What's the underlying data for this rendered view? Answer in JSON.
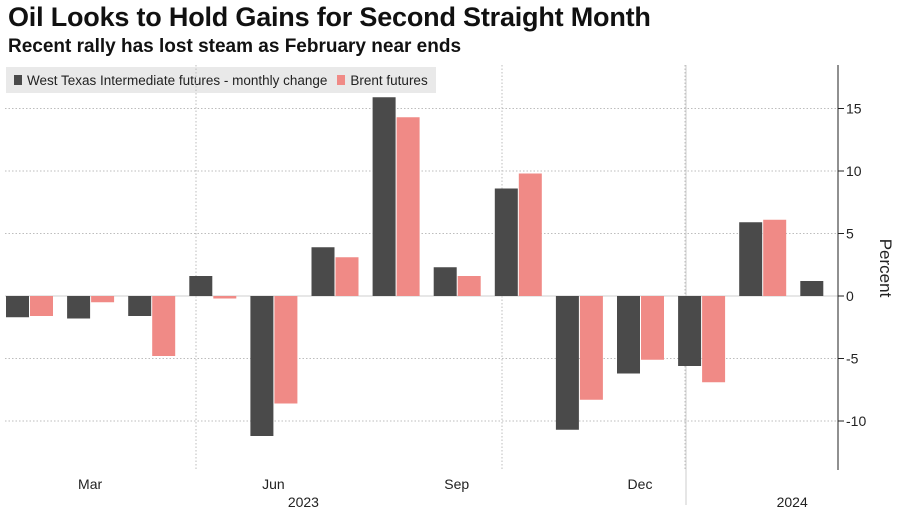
{
  "header": {
    "title": "Oil Looks to Hold Gains for Second Straight Month",
    "subtitle": "Recent rally has lost steam as February near ends"
  },
  "colors": {
    "wti": "#4a4a4a",
    "brent": "#f08a86",
    "grid": "#bdbdbd",
    "axis": "#222222"
  },
  "chart_data": {
    "type": "bar",
    "title": "Oil Looks to Hold Gains for Second Straight Month",
    "subtitle": "Recent rally has lost steam as February near ends",
    "ylabel": "Percent",
    "xlabel": "",
    "ylim": [
      -14,
      18
    ],
    "yticks": [
      -10,
      -5,
      0,
      5,
      10,
      15
    ],
    "ytick_labels": [
      "-10",
      "-5",
      "0",
      "5",
      "10",
      "15"
    ],
    "categories": [
      "2023-02",
      "2023-03",
      "2023-04",
      "2023-05",
      "2023-06",
      "2023-07",
      "2023-08",
      "2023-09",
      "2023-10",
      "2023-11",
      "2023-12",
      "2024-01",
      "2024-02"
    ],
    "series": [
      {
        "name": "West Texas Intermediate futures - monthly change",
        "values": [
          -1.7,
          -1.8,
          -1.6,
          1.6,
          -11.2,
          3.9,
          15.9,
          2.3,
          8.6,
          -10.7,
          -6.2,
          -5.6,
          5.9
        ]
      },
      {
        "name": "Brent futures",
        "values": [
          -1.6,
          -0.5,
          -4.8,
          -0.2,
          -8.6,
          3.1,
          14.3,
          1.6,
          9.8,
          -8.3,
          -5.1,
          -6.9,
          6.1
        ]
      }
    ],
    "x_tick_labels": [
      {
        "category": "2023-03",
        "label": "Mar"
      },
      {
        "category": "2023-06",
        "label": "Jun"
      },
      {
        "category": "2023-09",
        "label": "Sep"
      },
      {
        "category": "2023-12",
        "label": "Dec"
      }
    ],
    "year_labels": [
      {
        "category": "2023-06",
        "label": "2023"
      },
      {
        "category": "2024-02",
        "label": "2024"
      }
    ],
    "last_wti_extra": 1.2,
    "grid": true,
    "legend_position": "top-left"
  }
}
